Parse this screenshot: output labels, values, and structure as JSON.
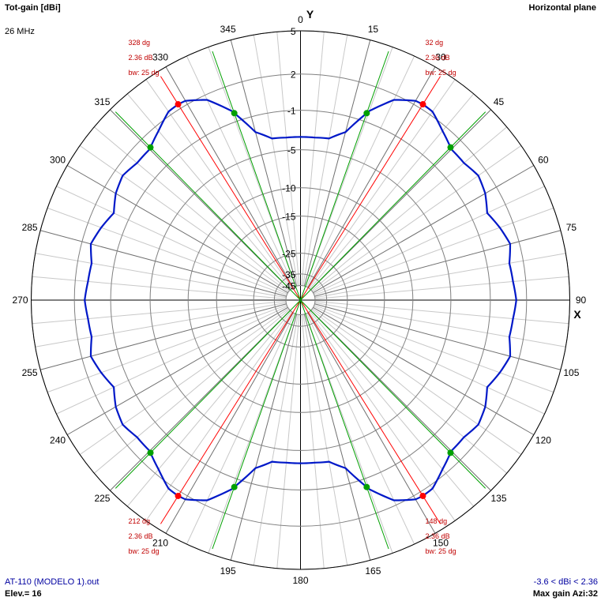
{
  "header": {
    "quantity": "Tot-gain [dBi]",
    "frequency": "26 MHz",
    "plane": "Horizontal plane"
  },
  "footer": {
    "file": "AT-110 (MODELO 1).out",
    "elevation": "Elev.= 16",
    "range": "-3.6 < dBi < 2.36",
    "max_gain": "Max gain Azi:32"
  },
  "chart_data": {
    "type": "polar",
    "title": "Tot-gain [dBi]",
    "axis_y_label": "Y",
    "axis_x_label": "X",
    "angle_labels": [
      "0",
      "15",
      "30",
      "45",
      "60",
      "75",
      "90",
      "105",
      "120",
      "135",
      "150",
      "165",
      "180",
      "195",
      "210",
      "225",
      "240",
      "255",
      "270",
      "285",
      "300",
      "315",
      "330",
      "345"
    ],
    "radial_labels": [
      "5",
      "2",
      "-1",
      "-5",
      "-10",
      "-15",
      "-25",
      "-35",
      "-45"
    ],
    "radial_values_dbi": [
      5,
      2,
      -1,
      -5,
      -10,
      -15,
      -25,
      -35,
      -45
    ],
    "colors": {
      "pattern": "#0018c8",
      "max_marker": "#ff0000",
      "beam_marker": "#00a000",
      "grid": "#808080",
      "text_blue": "#0000a0"
    },
    "series": [
      {
        "azimuth_deg": [
          0,
          5,
          10,
          15,
          20,
          25,
          30,
          32,
          35,
          40,
          45,
          50,
          55,
          60,
          65,
          70,
          75,
          80,
          85,
          90,
          95,
          100,
          105,
          110,
          115,
          120,
          125,
          130,
          135,
          140,
          145,
          148,
          150,
          155,
          160,
          165,
          170,
          175,
          180,
          185,
          190,
          195,
          200,
          205,
          210,
          212,
          215,
          220,
          225,
          230,
          235,
          240,
          245,
          250,
          255,
          260,
          265,
          270,
          275,
          280,
          285,
          290,
          295,
          300,
          305,
          310,
          315,
          320,
          325,
          328,
          330,
          335,
          340,
          345,
          350,
          355
        ],
        "gain_dbi": [
          -3.6,
          -3.6,
          -3.5,
          -2.5,
          0.0,
          1.6,
          2.3,
          2.36,
          2.3,
          1.6,
          1.0,
          1.0,
          1.3,
          1.0,
          0.4,
          0.9,
          1.3,
          0.9,
          1.0,
          1.2,
          1.0,
          0.9,
          1.3,
          0.9,
          0.4,
          1.0,
          1.3,
          1.0,
          1.0,
          1.6,
          2.3,
          2.36,
          2.3,
          1.6,
          0.0,
          -2.5,
          -3.5,
          -3.6,
          -3.6,
          -3.6,
          -3.5,
          -2.5,
          0.0,
          1.6,
          2.3,
          2.36,
          2.3,
          1.6,
          1.0,
          1.0,
          1.3,
          1.0,
          0.4,
          0.9,
          1.3,
          0.9,
          1.0,
          1.2,
          1.0,
          0.9,
          1.3,
          0.9,
          0.4,
          1.0,
          1.3,
          1.0,
          1.0,
          1.6,
          2.3,
          2.36,
          2.3,
          1.6,
          0.0,
          -2.5,
          -3.5,
          -3.6
        ]
      }
    ],
    "max_lobes": [
      {
        "azimuth": 32,
        "label_angle": "32 dg",
        "label_gain": "2.36 dB",
        "label_bw": "bw: 25 dg",
        "beam_edges": [
          19.5,
          44.5
        ]
      },
      {
        "azimuth": 148,
        "label_angle": "148 dg",
        "label_gain": "2.36 dB",
        "label_bw": "bw: 25 dg",
        "beam_edges": [
          135.5,
          160.5
        ]
      },
      {
        "azimuth": 212,
        "label_angle": "212 dg",
        "label_gain": "2.36 dB",
        "label_bw": "bw: 25 dg",
        "beam_edges": [
          199.5,
          224.5
        ]
      },
      {
        "azimuth": 328,
        "label_angle": "328 dg",
        "label_gain": "2.36 dB",
        "label_bw": "bw: 25 dg",
        "beam_edges": [
          315.5,
          340.5
        ]
      }
    ]
  }
}
